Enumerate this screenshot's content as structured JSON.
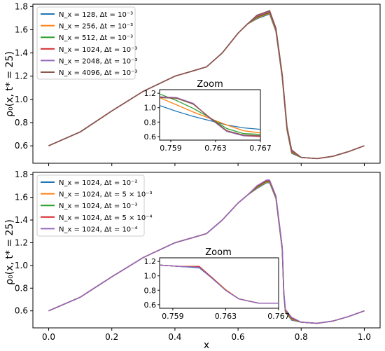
{
  "chart_data": [
    {
      "type": "line",
      "ylabel": "ρ₀(x, t* = 25)",
      "xlabel": "",
      "xlim": [
        -0.05,
        1.05
      ],
      "ylim": [
        0.45,
        1.82
      ],
      "yticks": [
        "0.6",
        "0.8",
        "1.0",
        "1.2",
        "1.4",
        "1.6",
        "1.8"
      ],
      "xticks": [],
      "legend_position": "upper-left",
      "series": [
        {
          "name": "N_x = 128, Δt = 10⁻³",
          "color": "#1f77b4"
        },
        {
          "name": "N_x = 256, Δt = 10⁻³",
          "color": "#ff7f0e"
        },
        {
          "name": "N_x = 512, Δt = 10⁻³",
          "color": "#2ca02c"
        },
        {
          "name": "N_x = 1024, Δt = 10⁻³",
          "color": "#d62728"
        },
        {
          "name": "N_x = 2048, Δt = 10⁻³",
          "color": "#9467bd"
        },
        {
          "name": "N_x = 4096, Δt = 10⁻³",
          "color": "#8c564b"
        }
      ],
      "x": [
        0.0,
        0.1,
        0.2,
        0.3,
        0.4,
        0.45,
        0.5,
        0.55,
        0.6,
        0.63,
        0.66,
        0.69,
        0.7,
        0.72,
        0.74,
        0.755,
        0.77,
        0.8,
        0.85,
        0.9,
        0.95,
        1.0
      ],
      "y": [
        0.6,
        0.72,
        0.9,
        1.07,
        1.2,
        1.24,
        1.28,
        1.4,
        1.57,
        1.65,
        1.71,
        1.74,
        1.75,
        1.6,
        1.2,
        0.75,
        0.55,
        0.5,
        0.49,
        0.51,
        0.55,
        0.6
      ],
      "inset": {
        "title": "Zoom",
        "xlim": [
          0.758,
          0.767
        ],
        "ylim": [
          0.55,
          1.25
        ],
        "xticks": [
          "0.759",
          "0.763",
          "0.767"
        ],
        "yticks": [
          "0.6",
          "0.8",
          "1.0",
          "1.2"
        ],
        "series_y": [
          [
            1.03,
            0.95,
            0.88,
            0.82,
            0.76,
            0.72,
            0.7
          ],
          [
            1.14,
            1.04,
            0.94,
            0.85,
            0.76,
            0.68,
            0.65
          ],
          [
            1.19,
            1.1,
            0.99,
            0.86,
            0.71,
            0.64,
            0.63
          ],
          [
            1.15,
            1.14,
            1.05,
            0.86,
            0.68,
            0.61,
            0.6
          ],
          [
            1.15,
            1.14,
            1.06,
            0.85,
            0.67,
            0.61,
            0.61
          ],
          [
            1.14,
            1.13,
            1.05,
            0.86,
            0.68,
            0.62,
            0.61
          ]
        ],
        "x": [
          0.758,
          0.7595,
          0.761,
          0.7625,
          0.764,
          0.7655,
          0.767
        ]
      }
    },
    {
      "type": "line",
      "ylabel": "ρ₀(x, t* = 25)",
      "xlabel": "x",
      "xlim": [
        -0.05,
        1.05
      ],
      "ylim": [
        0.45,
        1.82
      ],
      "yticks": [
        "0.6",
        "0.8",
        "1.0",
        "1.2",
        "1.4",
        "1.6",
        "1.8"
      ],
      "xticks": [
        "0.0",
        "0.2",
        "0.4",
        "0.6",
        "0.8",
        "1.0"
      ],
      "legend_position": "upper-left",
      "series": [
        {
          "name": "N_x = 1024, Δt = 10⁻²",
          "color": "#1f77b4"
        },
        {
          "name": "N_x = 1024, Δt = 5 × 10⁻³",
          "color": "#ff7f0e"
        },
        {
          "name": "N_x = 1024, Δt = 10⁻³",
          "color": "#2ca02c"
        },
        {
          "name": "N_x = 1024, Δt = 5 × 10⁻⁴",
          "color": "#d62728"
        },
        {
          "name": "N_x = 1024, Δt = 10⁻⁴",
          "color": "#9467bd"
        }
      ],
      "x": [
        0.0,
        0.1,
        0.2,
        0.3,
        0.4,
        0.45,
        0.5,
        0.55,
        0.6,
        0.63,
        0.66,
        0.69,
        0.7,
        0.72,
        0.74,
        0.745,
        0.75,
        0.77,
        0.8,
        0.85,
        0.9,
        0.95,
        1.0
      ],
      "y": [
        0.6,
        0.72,
        0.9,
        1.07,
        1.2,
        1.24,
        1.28,
        1.4,
        1.55,
        1.62,
        1.69,
        1.74,
        1.74,
        1.6,
        1.15,
        0.75,
        0.6,
        0.53,
        0.5,
        0.49,
        0.51,
        0.55,
        0.6
      ],
      "inset": {
        "title": "Zoom",
        "xlim": [
          0.758,
          0.767
        ],
        "ylim": [
          0.55,
          1.25
        ],
        "xticks": [
          "0.759",
          "0.763",
          "0.767"
        ],
        "yticks": [
          "0.6",
          "0.8",
          "1.0",
          "1.2"
        ],
        "x": [
          0.758,
          0.7595,
          0.761,
          0.762,
          0.763,
          0.764,
          0.7655,
          0.767
        ],
        "series_y": [
          [
            1.15,
            1.13,
            1.11,
            0.96,
            0.8,
            0.68,
            0.62,
            0.62
          ],
          [
            1.15,
            1.13,
            1.13,
            0.97,
            0.81,
            0.68,
            0.62,
            0.62
          ],
          [
            1.15,
            1.13,
            1.12,
            0.97,
            0.8,
            0.68,
            0.62,
            0.62
          ],
          [
            1.15,
            1.13,
            1.13,
            0.97,
            0.8,
            0.68,
            0.62,
            0.62
          ],
          [
            1.15,
            1.13,
            1.12,
            0.96,
            0.8,
            0.68,
            0.62,
            0.62
          ]
        ]
      }
    }
  ]
}
